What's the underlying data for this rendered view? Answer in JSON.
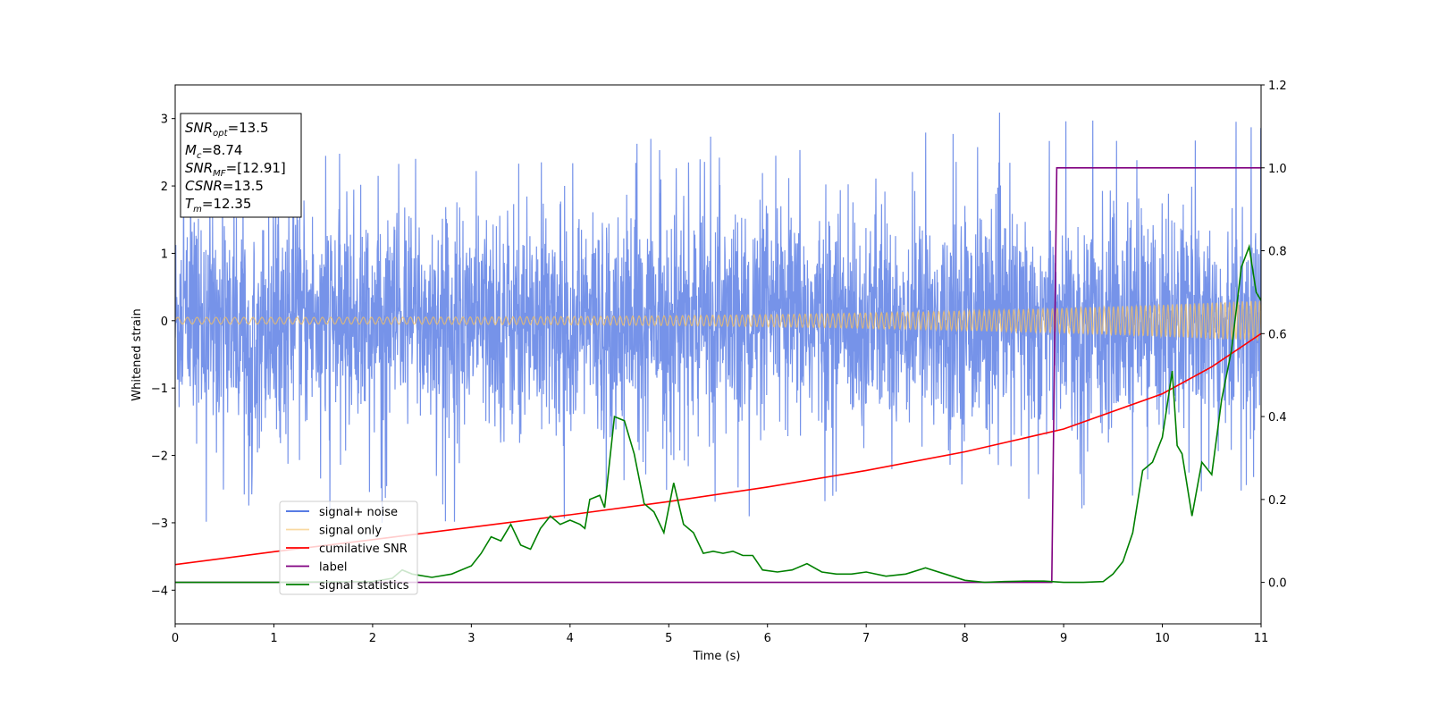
{
  "chart_data": {
    "type": "line",
    "xlabel": "Time (s)",
    "ylabel": "Whitened strain",
    "xlim": [
      0,
      11
    ],
    "ylim": [
      -4.5,
      3.5
    ],
    "y2lim": [
      -0.1,
      1.2
    ],
    "xticks": [
      "0",
      "1",
      "2",
      "3",
      "4",
      "5",
      "6",
      "7",
      "8",
      "9",
      "10",
      "11"
    ],
    "yticks": [
      "−4",
      "−3",
      "−2",
      "−1",
      "0",
      "1",
      "2",
      "3"
    ],
    "y2ticks": [
      "0.0",
      "0.2",
      "0.4",
      "0.6",
      "0.8",
      "1.0",
      "1.2"
    ],
    "legend_placement": "lower-left",
    "grid": false,
    "annotations": {
      "snr_opt": {
        "name": "SNR",
        "sub": "opt",
        "value": "=13.5"
      },
      "mc": {
        "name": "M",
        "sub": "c",
        "value": "=8.74"
      },
      "snr_mf": {
        "name": "SNR",
        "sub": "MF",
        "value": "=[12.91]"
      },
      "csnr": {
        "name": "CSNR",
        "sub": "",
        "value": "=13.5"
      },
      "tm": {
        "name": "T",
        "sub": "m",
        "value": "=12.35"
      }
    },
    "series": [
      {
        "name": "signal+ noise",
        "color": "#4169e1",
        "axis": "left",
        "kind": "noise",
        "sigma": 0.95,
        "envelope": [
          -3.0,
          3.1
        ]
      },
      {
        "name": "signal only",
        "color": "#f5c062",
        "axis": "left",
        "kind": "chirp",
        "amp_start": 0.05,
        "amp_end": 0.3
      },
      {
        "name": "cumilative SNR",
        "color": "#ff0000",
        "axis": "right",
        "x": [
          0,
          1,
          2,
          3,
          4,
          5,
          6,
          7,
          8,
          9,
          10,
          10.5,
          11
        ],
        "y": [
          0.043,
          0.074,
          0.103,
          0.133,
          0.163,
          0.195,
          0.23,
          0.27,
          0.315,
          0.37,
          0.455,
          0.52,
          0.6
        ]
      },
      {
        "name": "label",
        "color": "#800080",
        "axis": "right",
        "x": [
          0,
          8.88,
          8.93,
          11
        ],
        "y": [
          0.0,
          0.0,
          1.0,
          1.0
        ]
      },
      {
        "name": "signal statistics",
        "color": "#008000",
        "axis": "right",
        "x": [
          0,
          1.0,
          2.0,
          2.2,
          2.3,
          2.4,
          2.6,
          2.8,
          3.0,
          3.1,
          3.2,
          3.3,
          3.4,
          3.5,
          3.6,
          3.7,
          3.8,
          3.9,
          4.0,
          4.1,
          4.15,
          4.2,
          4.3,
          4.35,
          4.45,
          4.55,
          4.65,
          4.75,
          4.85,
          4.95,
          5.05,
          5.15,
          5.25,
          5.35,
          5.45,
          5.55,
          5.65,
          5.75,
          5.85,
          5.95,
          6.1,
          6.25,
          6.4,
          6.55,
          6.7,
          6.85,
          7.0,
          7.2,
          7.4,
          7.6,
          7.8,
          8.0,
          8.2,
          8.4,
          8.6,
          8.8,
          9.0,
          9.2,
          9.4,
          9.5,
          9.6,
          9.7,
          9.8,
          9.9,
          10.0,
          10.05,
          10.1,
          10.15,
          10.2,
          10.3,
          10.4,
          10.5,
          10.6,
          10.7,
          10.8,
          10.88,
          10.95,
          11.0
        ],
        "y": [
          0.0,
          0.0,
          0.002,
          0.01,
          0.03,
          0.02,
          0.012,
          0.02,
          0.04,
          0.07,
          0.11,
          0.1,
          0.14,
          0.09,
          0.08,
          0.13,
          0.16,
          0.14,
          0.15,
          0.14,
          0.13,
          0.2,
          0.21,
          0.18,
          0.4,
          0.39,
          0.31,
          0.19,
          0.17,
          0.12,
          0.24,
          0.14,
          0.12,
          0.07,
          0.075,
          0.07,
          0.075,
          0.065,
          0.065,
          0.03,
          0.025,
          0.03,
          0.045,
          0.025,
          0.02,
          0.02,
          0.025,
          0.015,
          0.02,
          0.035,
          0.02,
          0.005,
          0.0,
          0.002,
          0.003,
          0.003,
          0.0,
          0.0,
          0.002,
          0.02,
          0.05,
          0.12,
          0.27,
          0.29,
          0.35,
          0.43,
          0.51,
          0.33,
          0.31,
          0.16,
          0.29,
          0.26,
          0.44,
          0.56,
          0.76,
          0.81,
          0.7,
          0.68
        ]
      }
    ]
  }
}
